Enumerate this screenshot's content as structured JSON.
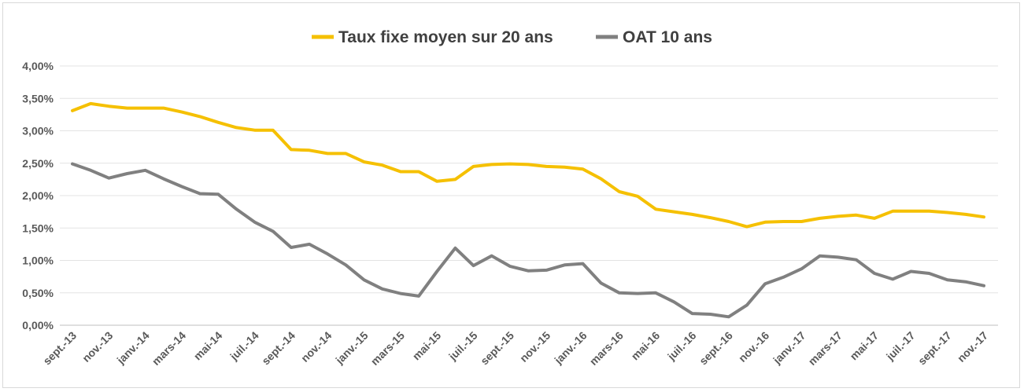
{
  "chart_data": {
    "type": "line",
    "title": "",
    "xlabel": "",
    "ylabel": "",
    "ylim": [
      0,
      0.04
    ],
    "y_ticks": [
      0,
      0.005,
      0.01,
      0.015,
      0.02,
      0.025,
      0.03,
      0.035,
      0.04
    ],
    "y_tick_labels": [
      "0,00%",
      "0,50%",
      "1,00%",
      "1,50%",
      "2,00%",
      "2,50%",
      "3,00%",
      "3,50%",
      "4,00%"
    ],
    "grid": "horizontal",
    "legend_position": "top-center",
    "x": [
      "2013-09",
      "2013-10",
      "2013-11",
      "2013-12",
      "2014-01",
      "2014-02",
      "2014-03",
      "2014-04",
      "2014-05",
      "2014-06",
      "2014-07",
      "2014-08",
      "2014-09",
      "2014-10",
      "2014-11",
      "2014-12",
      "2015-01",
      "2015-02",
      "2015-03",
      "2015-04",
      "2015-05",
      "2015-06",
      "2015-07",
      "2015-08",
      "2015-09",
      "2015-10",
      "2015-11",
      "2015-12",
      "2016-01",
      "2016-02",
      "2016-03",
      "2016-04",
      "2016-05",
      "2016-06",
      "2016-07",
      "2016-08",
      "2016-09",
      "2016-10",
      "2016-11",
      "2016-12",
      "2017-01",
      "2017-02",
      "2017-03",
      "2017-04",
      "2017-05",
      "2017-06",
      "2017-07",
      "2017-08",
      "2017-09",
      "2017-10",
      "2017-11"
    ],
    "x_tick_labels": [
      "sept.-13",
      "nov.-13",
      "janv.-14",
      "mars-14",
      "mai-14",
      "juil.-14",
      "sept.-14",
      "nov.-14",
      "janv.-15",
      "mars-15",
      "mai-15",
      "juil.-15",
      "sept.-15",
      "nov.-15",
      "janv.-16",
      "mars-16",
      "mai-16",
      "juil.-16",
      "sept.-16",
      "nov.-16",
      "janv.-17",
      "mars-17",
      "mai-17",
      "juil.-17",
      "sept.-17",
      "nov.-17"
    ],
    "series": [
      {
        "name": "Taux fixe moyen sur 20 ans",
        "color": "#f5c000",
        "values": [
          0.0331,
          0.0342,
          0.0338,
          0.0335,
          0.0335,
          0.0335,
          0.0329,
          0.0322,
          0.0313,
          0.0305,
          0.0301,
          0.0301,
          0.0271,
          0.027,
          0.0265,
          0.0265,
          0.0252,
          0.0247,
          0.0237,
          0.0237,
          0.0222,
          0.0225,
          0.0245,
          0.0248,
          0.0249,
          0.0248,
          0.0245,
          0.0244,
          0.0241,
          0.0226,
          0.0206,
          0.0199,
          0.0179,
          0.0175,
          0.0171,
          0.0166,
          0.016,
          0.0152,
          0.0159,
          0.016,
          0.016,
          0.0165,
          0.0168,
          0.017,
          0.0165,
          0.0176,
          0.0176,
          0.0176,
          0.0174,
          0.0171,
          0.0167
        ]
      },
      {
        "name": "OAT 10 ans",
        "color": "#808080",
        "values": [
          0.0249,
          0.0239,
          0.0227,
          0.0234,
          0.0239,
          0.0226,
          0.0214,
          0.0203,
          0.0202,
          0.0179,
          0.0159,
          0.0145,
          0.012,
          0.0125,
          0.011,
          0.0093,
          0.007,
          0.0056,
          0.0049,
          0.0045,
          0.0083,
          0.0119,
          0.0092,
          0.0107,
          0.0091,
          0.0084,
          0.0085,
          0.0093,
          0.0095,
          0.0065,
          0.005,
          0.0049,
          0.005,
          0.0036,
          0.0018,
          0.0017,
          0.0013,
          0.0031,
          0.0064,
          0.0074,
          0.0087,
          0.0107,
          0.0105,
          0.0101,
          0.008,
          0.0071,
          0.0083,
          0.008,
          0.007,
          0.0067,
          0.0061
        ]
      }
    ]
  }
}
